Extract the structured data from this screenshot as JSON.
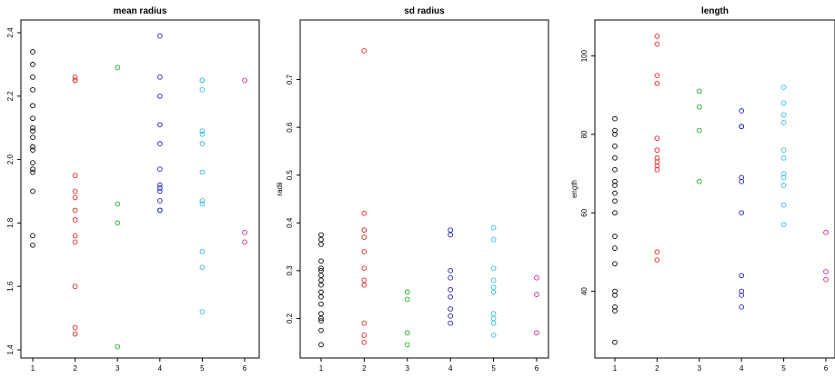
{
  "figure": {
    "series_colors": [
      "#000000",
      "#dd2222",
      "#22aa22",
      "#2222bb",
      "#33bbdd",
      "#cc2299"
    ]
  },
  "chart_data": [
    {
      "type": "scatter",
      "title": "mean radius",
      "xlabel": "",
      "ylabel": "",
      "xlim": [
        1,
        6
      ],
      "ylim": [
        1.4,
        2.4
      ],
      "xticks": [
        1,
        2,
        3,
        4,
        5,
        6
      ],
      "yticks": [
        1.4,
        1.6,
        1.8,
        2.0,
        2.2,
        2.4
      ],
      "ytick_labels": [
        "1.4",
        "1.6",
        "1.8",
        "2.0",
        "2.2",
        "2.4"
      ],
      "grid": false,
      "legend": "none",
      "points": [
        [
          1,
          2.34
        ],
        [
          1,
          2.3
        ],
        [
          1,
          2.26
        ],
        [
          1,
          2.22
        ],
        [
          1,
          2.17
        ],
        [
          1,
          2.13
        ],
        [
          1,
          2.1
        ],
        [
          1,
          2.09
        ],
        [
          1,
          2.07
        ],
        [
          1,
          2.04
        ],
        [
          1,
          2.03
        ],
        [
          1,
          1.99
        ],
        [
          1,
          1.97
        ],
        [
          1,
          1.96
        ],
        [
          1,
          1.9
        ],
        [
          1,
          1.76
        ],
        [
          1,
          1.73
        ],
        [
          2,
          2.26
        ],
        [
          2,
          2.25
        ],
        [
          2,
          2.25
        ],
        [
          2,
          1.95
        ],
        [
          2,
          1.9
        ],
        [
          2,
          1.88
        ],
        [
          2,
          1.84
        ],
        [
          2,
          1.81
        ],
        [
          2,
          1.76
        ],
        [
          2,
          1.74
        ],
        [
          2,
          1.6
        ],
        [
          2,
          1.47
        ],
        [
          2,
          1.45
        ],
        [
          3,
          2.29
        ],
        [
          3,
          1.86
        ],
        [
          3,
          1.8
        ],
        [
          3,
          1.41
        ],
        [
          4,
          2.39
        ],
        [
          4,
          2.26
        ],
        [
          4,
          2.2
        ],
        [
          4,
          2.11
        ],
        [
          4,
          2.05
        ],
        [
          4,
          1.97
        ],
        [
          4,
          1.92
        ],
        [
          4,
          1.91
        ],
        [
          4,
          1.9
        ],
        [
          4,
          1.87
        ],
        [
          4,
          1.84
        ],
        [
          4,
          1.84
        ],
        [
          5,
          2.25
        ],
        [
          5,
          2.25
        ],
        [
          5,
          2.22
        ],
        [
          5,
          2.09
        ],
        [
          5,
          2.08
        ],
        [
          5,
          2.05
        ],
        [
          5,
          1.96
        ],
        [
          5,
          1.87
        ],
        [
          5,
          1.86
        ],
        [
          5,
          1.71
        ],
        [
          5,
          1.66
        ],
        [
          5,
          1.52
        ],
        [
          6,
          2.25
        ],
        [
          6,
          1.77
        ],
        [
          6,
          1.74
        ]
      ]
    },
    {
      "type": "scatter",
      "title": "sd radius",
      "xlabel": "",
      "ylabel": "radii",
      "xlim": [
        1,
        6
      ],
      "ylim": [
        0.14,
        0.76
      ],
      "xticks": [
        1,
        2,
        3,
        4,
        5,
        6
      ],
      "yticks": [
        0.2,
        0.3,
        0.4,
        0.5,
        0.6,
        0.7
      ],
      "ytick_labels": [
        "0.2",
        "0.3",
        "0.4",
        "0.5",
        "0.6",
        "0.7"
      ],
      "grid": false,
      "legend": "none",
      "points": [
        [
          1,
          0.375
        ],
        [
          1,
          0.365
        ],
        [
          1,
          0.355
        ],
        [
          1,
          0.32
        ],
        [
          1,
          0.305
        ],
        [
          1,
          0.3
        ],
        [
          1,
          0.29
        ],
        [
          1,
          0.28
        ],
        [
          1,
          0.27
        ],
        [
          1,
          0.255
        ],
        [
          1,
          0.245
        ],
        [
          1,
          0.23
        ],
        [
          1,
          0.21
        ],
        [
          1,
          0.2
        ],
        [
          1,
          0.195
        ],
        [
          1,
          0.175
        ],
        [
          1,
          0.145
        ],
        [
          2,
          0.76
        ],
        [
          2,
          0.42
        ],
        [
          2,
          0.385
        ],
        [
          2,
          0.37
        ],
        [
          2,
          0.34
        ],
        [
          2,
          0.305
        ],
        [
          2,
          0.28
        ],
        [
          2,
          0.27
        ],
        [
          2,
          0.19
        ],
        [
          2,
          0.165
        ],
        [
          2,
          0.15
        ],
        [
          3,
          0.255
        ],
        [
          3,
          0.24
        ],
        [
          3,
          0.17
        ],
        [
          3,
          0.145
        ],
        [
          4,
          0.385
        ],
        [
          4,
          0.375
        ],
        [
          4,
          0.3
        ],
        [
          4,
          0.285
        ],
        [
          4,
          0.26
        ],
        [
          4,
          0.245
        ],
        [
          4,
          0.22
        ],
        [
          4,
          0.205
        ],
        [
          4,
          0.19
        ],
        [
          5,
          0.39
        ],
        [
          5,
          0.365
        ],
        [
          5,
          0.305
        ],
        [
          5,
          0.28
        ],
        [
          5,
          0.265
        ],
        [
          5,
          0.255
        ],
        [
          5,
          0.21
        ],
        [
          5,
          0.2
        ],
        [
          5,
          0.19
        ],
        [
          5,
          0.165
        ],
        [
          6,
          0.285
        ],
        [
          6,
          0.25
        ],
        [
          6,
          0.17
        ]
      ]
    },
    {
      "type": "scatter",
      "title": "length",
      "xlabel": "",
      "ylabel": "ength",
      "xlim": [
        1,
        6
      ],
      "ylim": [
        26,
        105
      ],
      "xticks": [
        1,
        2,
        3,
        4,
        5,
        6
      ],
      "yticks": [
        40,
        60,
        80,
        100
      ],
      "ytick_labels": [
        "40",
        "60",
        "80",
        "100"
      ],
      "grid": false,
      "legend": "none",
      "points": [
        [
          1,
          84
        ],
        [
          1,
          81
        ],
        [
          1,
          80
        ],
        [
          1,
          77
        ],
        [
          1,
          74
        ],
        [
          1,
          71
        ],
        [
          1,
          68
        ],
        [
          1,
          67
        ],
        [
          1,
          65
        ],
        [
          1,
          63
        ],
        [
          1,
          60
        ],
        [
          1,
          54
        ],
        [
          1,
          51
        ],
        [
          1,
          47
        ],
        [
          1,
          40
        ],
        [
          1,
          39
        ],
        [
          1,
          36
        ],
        [
          1,
          35
        ],
        [
          1,
          27
        ],
        [
          2,
          105
        ],
        [
          2,
          103
        ],
        [
          2,
          95
        ],
        [
          2,
          93
        ],
        [
          2,
          79
        ],
        [
          2,
          76
        ],
        [
          2,
          74
        ],
        [
          2,
          73
        ],
        [
          2,
          72
        ],
        [
          2,
          71
        ],
        [
          2,
          50
        ],
        [
          2,
          48
        ],
        [
          3,
          91
        ],
        [
          3,
          87
        ],
        [
          3,
          81
        ],
        [
          3,
          68
        ],
        [
          4,
          86
        ],
        [
          4,
          82
        ],
        [
          4,
          82
        ],
        [
          4,
          69
        ],
        [
          4,
          68
        ],
        [
          4,
          60
        ],
        [
          4,
          44
        ],
        [
          4,
          40
        ],
        [
          4,
          39
        ],
        [
          4,
          36
        ],
        [
          5,
          92
        ],
        [
          5,
          88
        ],
        [
          5,
          85
        ],
        [
          5,
          83
        ],
        [
          5,
          76
        ],
        [
          5,
          74
        ],
        [
          5,
          70
        ],
        [
          5,
          69
        ],
        [
          5,
          67
        ],
        [
          5,
          62
        ],
        [
          5,
          57
        ],
        [
          6,
          55
        ],
        [
          6,
          45
        ],
        [
          6,
          43
        ]
      ]
    }
  ]
}
